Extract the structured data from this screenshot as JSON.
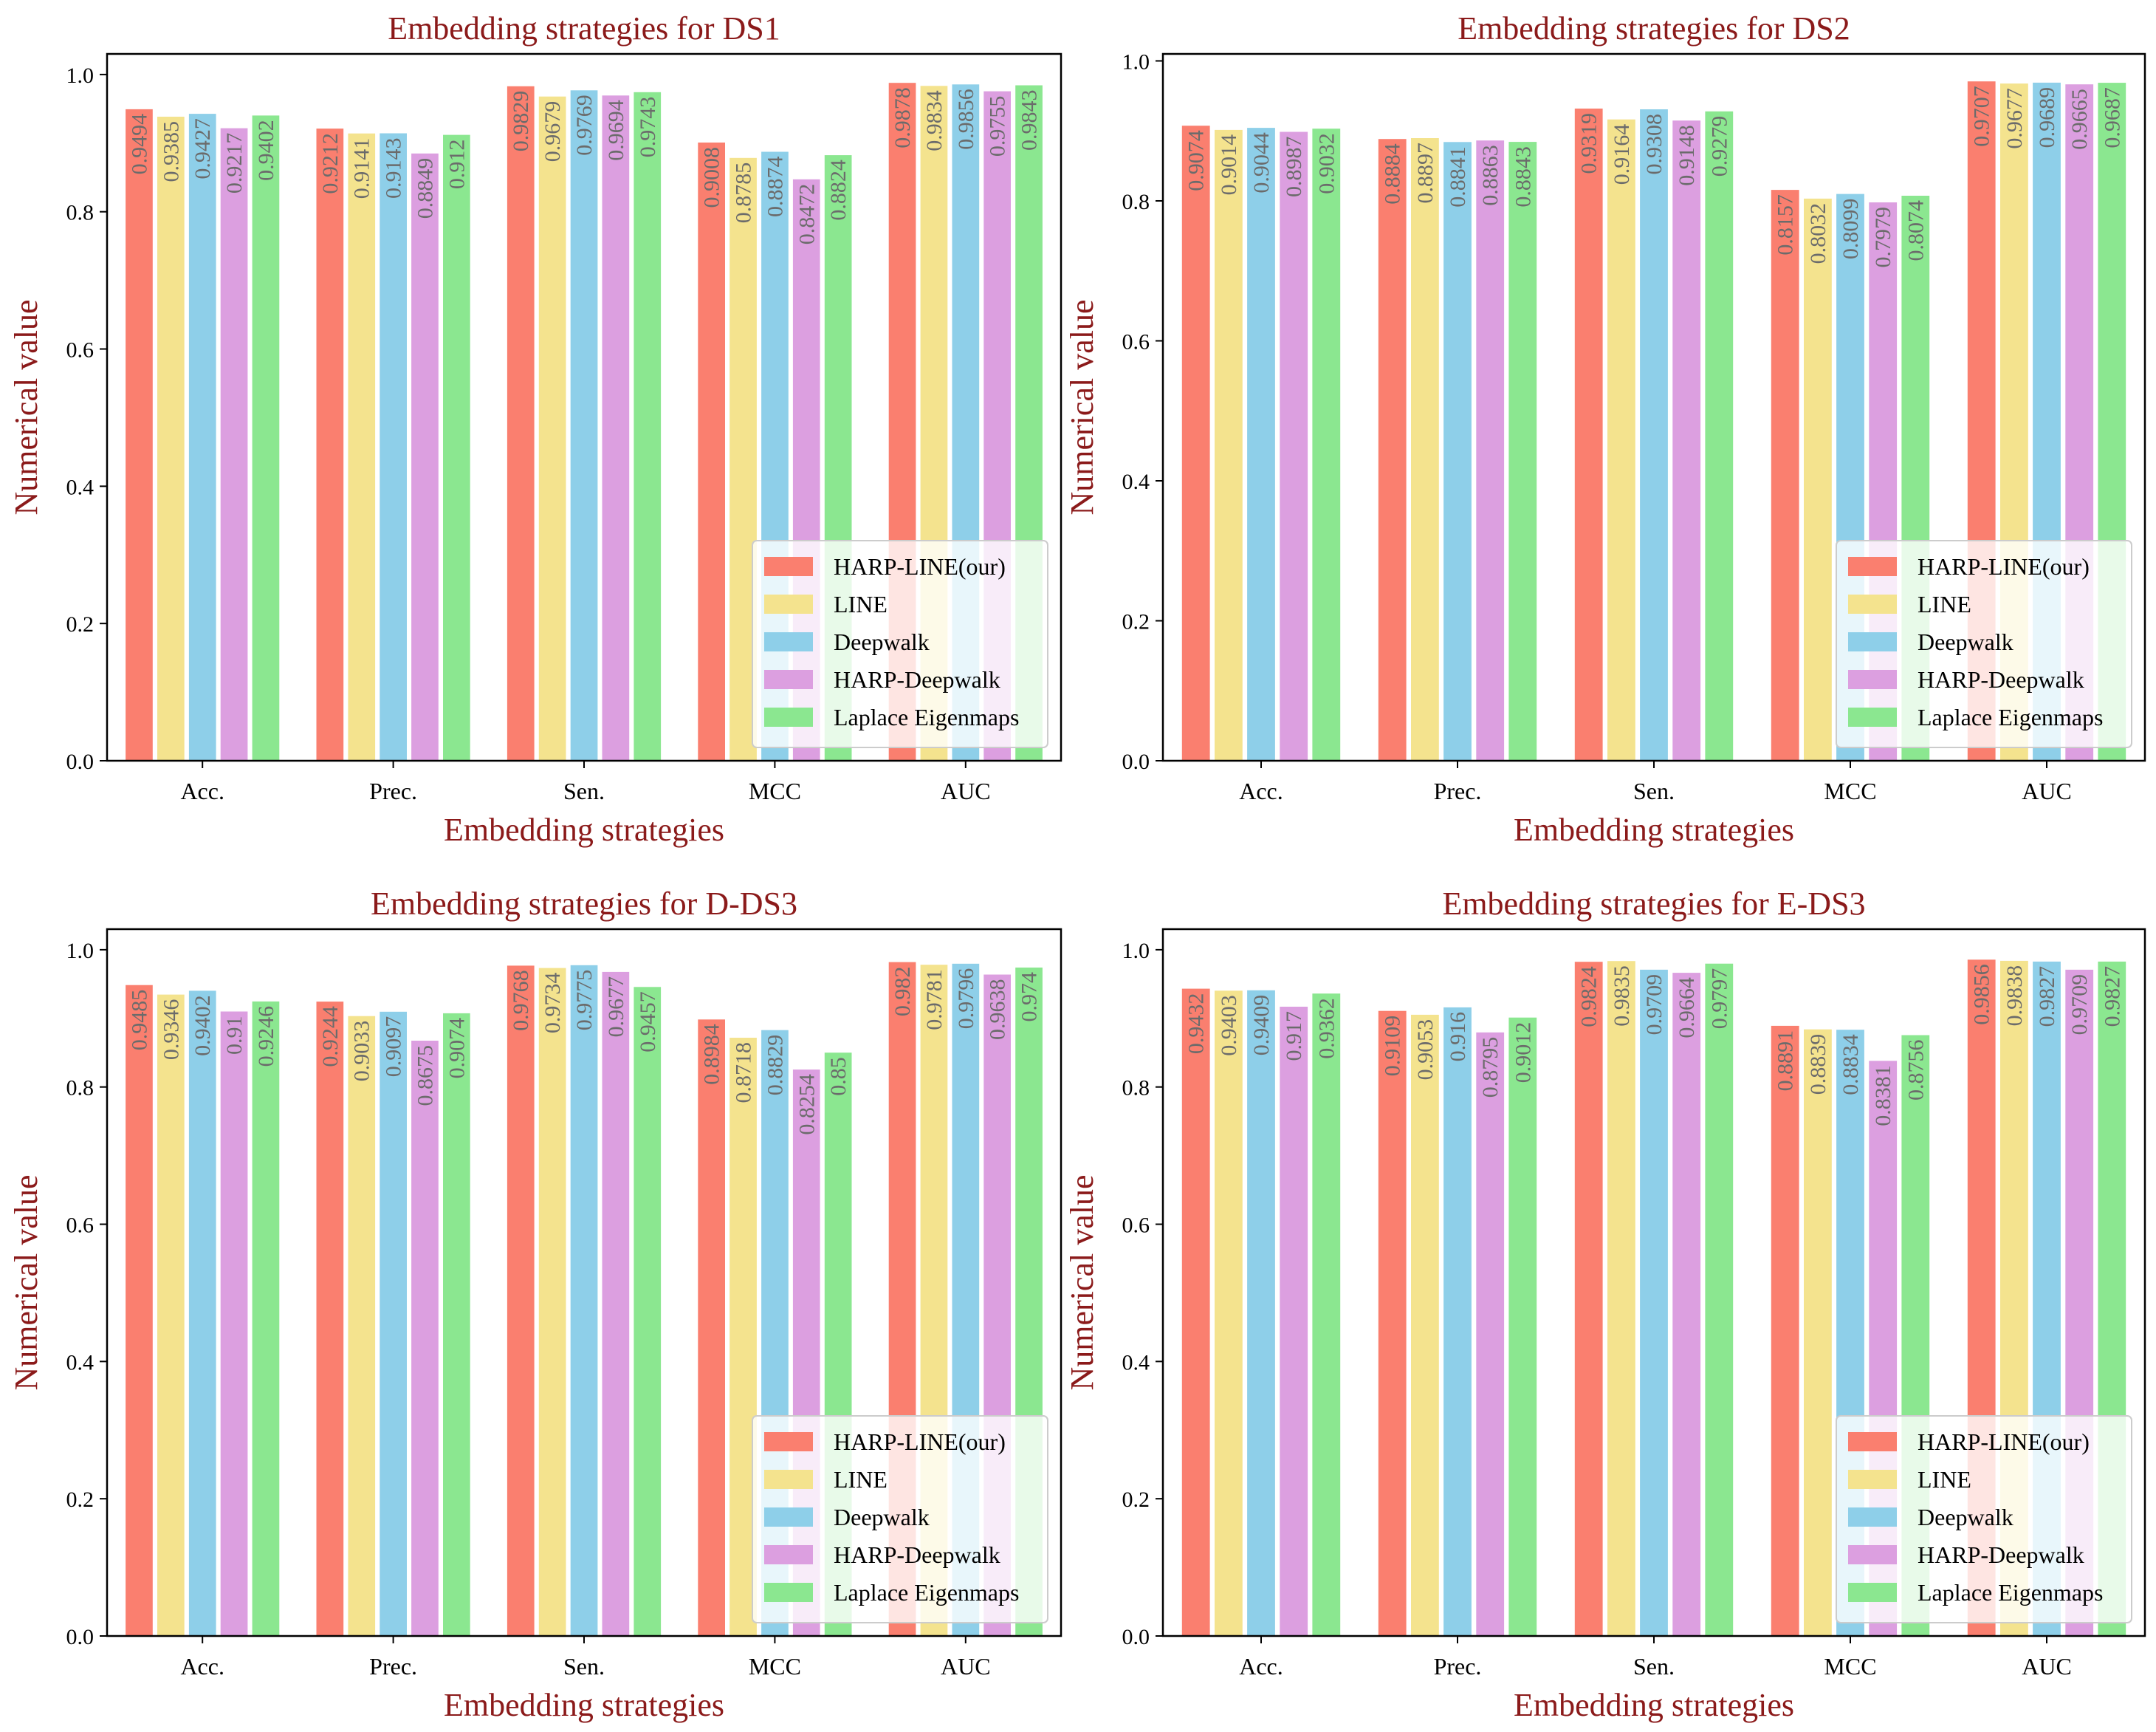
{
  "figure": {
    "legend_labels": [
      "HARP-LINE(our)",
      "LINE",
      "Deepwalk",
      "HARP-Deepwalk",
      "Laplace Eigenmaps"
    ]
  },
  "colors": {
    "series": [
      "#fa7f6f",
      "#f4e38e",
      "#8ecfe9",
      "#dc9fe0",
      "#8be790"
    ],
    "title": "#8b1a1a",
    "axis": "#000000",
    "data_label": "#6b6b6b"
  },
  "chart_data": [
    {
      "type": "bar",
      "title": "Embedding strategies for DS1",
      "xlabel": "Embedding strategies",
      "ylabel": "Numerical value",
      "categories": [
        "Acc.",
        "Prec.",
        "Sen.",
        "MCC",
        "AUC"
      ],
      "ylim": [
        0,
        1.03
      ],
      "yticks": [
        "0.0",
        "0.2",
        "0.4",
        "0.6",
        "0.8",
        "1.0"
      ],
      "legend_position": "lower-right",
      "series": [
        {
          "name": "HARP-LINE(our)",
          "values": [
            0.9494,
            0.9212,
            0.9829,
            0.9008,
            0.9878
          ],
          "labels": [
            "0.9494",
            "0.9212",
            "0.9829",
            "0.9008",
            "0.9878"
          ]
        },
        {
          "name": "LINE",
          "values": [
            0.9385,
            0.9141,
            0.9679,
            0.8785,
            0.9834
          ],
          "labels": [
            "0.9385",
            "0.9141",
            "0.9679",
            "0.8785",
            "0.9834"
          ]
        },
        {
          "name": "Deepwalk",
          "values": [
            0.9427,
            0.9143,
            0.9769,
            0.8874,
            0.9856
          ],
          "labels": [
            "0.9427",
            "0.9143",
            "0.9769",
            "0.8874",
            "0.9856"
          ]
        },
        {
          "name": "HARP-Deepwalk",
          "values": [
            0.9217,
            0.8849,
            0.9694,
            0.8472,
            0.9755
          ],
          "labels": [
            "0.9217",
            "0.8849",
            "0.9694",
            "0.8472",
            "0.9755"
          ]
        },
        {
          "name": "Laplace Eigenmaps",
          "values": [
            0.9402,
            0.912,
            0.9743,
            0.8824,
            0.9843
          ],
          "labels": [
            "0.9402",
            "0.912",
            "0.9743",
            "0.8824",
            "0.9843"
          ]
        }
      ]
    },
    {
      "type": "bar",
      "title": "Embedding strategies for DS2",
      "xlabel": "Embedding strategies",
      "ylabel": "Numerical value",
      "categories": [
        "Acc.",
        "Prec.",
        "Sen.",
        "MCC",
        "AUC"
      ],
      "ylim": [
        0,
        1.01
      ],
      "yticks": [
        "0.0",
        "0.2",
        "0.4",
        "0.6",
        "0.8",
        "1.0"
      ],
      "legend_position": "lower-right",
      "series": [
        {
          "name": "HARP-LINE(our)",
          "values": [
            0.9074,
            0.8884,
            0.9319,
            0.8157,
            0.9707
          ],
          "labels": [
            "0.9074",
            "0.8884",
            "0.9319",
            "0.8157",
            "0.9707"
          ]
        },
        {
          "name": "LINE",
          "values": [
            0.9014,
            0.8897,
            0.9164,
            0.8032,
            0.9677
          ],
          "labels": [
            "0.9014",
            "0.8897",
            "0.9164",
            "0.8032",
            "0.9677"
          ]
        },
        {
          "name": "Deepwalk",
          "values": [
            0.9044,
            0.8841,
            0.9308,
            0.8099,
            0.9689
          ],
          "labels": [
            "0.9044",
            "0.8841",
            "0.9308",
            "0.8099",
            "0.9689"
          ]
        },
        {
          "name": "HARP-Deepwalk",
          "values": [
            0.8987,
            0.8863,
            0.9148,
            0.7979,
            0.9665
          ],
          "labels": [
            "0.8987",
            "0.8863",
            "0.9148",
            "0.7979",
            "0.9665"
          ]
        },
        {
          "name": "Laplace Eigenmaps",
          "values": [
            0.9032,
            0.8843,
            0.9279,
            0.8074,
            0.9687
          ],
          "labels": [
            "0.9032",
            "0.8843",
            "0.9279",
            "0.8074",
            "0.9687"
          ]
        }
      ]
    },
    {
      "type": "bar",
      "title": "Embedding strategies for D-DS3",
      "xlabel": "Embedding strategies",
      "ylabel": "Numerical value",
      "categories": [
        "Acc.",
        "Prec.",
        "Sen.",
        "MCC",
        "AUC"
      ],
      "ylim": [
        0,
        1.03
      ],
      "yticks": [
        "0.0",
        "0.2",
        "0.4",
        "0.6",
        "0.8",
        "1.0"
      ],
      "legend_position": "lower-right",
      "series": [
        {
          "name": "HARP-LINE(our)",
          "values": [
            0.9485,
            0.9244,
            0.9768,
            0.8984,
            0.982
          ],
          "labels": [
            "0.9485",
            "0.9244",
            "0.9768",
            "0.8984",
            "0.982"
          ]
        },
        {
          "name": "LINE",
          "values": [
            0.9346,
            0.9033,
            0.9734,
            0.8718,
            0.9781
          ],
          "labels": [
            "0.9346",
            "0.9033",
            "0.9734",
            "0.8718",
            "0.9781"
          ]
        },
        {
          "name": "Deepwalk",
          "values": [
            0.9402,
            0.9097,
            0.9775,
            0.8829,
            0.9796
          ],
          "labels": [
            "0.9402",
            "0.9097",
            "0.9775",
            "0.8829",
            "0.9796"
          ]
        },
        {
          "name": "HARP-Deepwalk",
          "values": [
            0.91,
            0.8675,
            0.9677,
            0.8254,
            0.9638
          ],
          "labels": [
            "0.91",
            "0.8675",
            "0.9677",
            "0.8254",
            "0.9638"
          ]
        },
        {
          "name": "Laplace Eigenmaps",
          "values": [
            0.9246,
            0.9074,
            0.9457,
            0.85,
            0.974
          ],
          "labels": [
            "0.9246",
            "0.9074",
            "0.9457",
            "0.85",
            "0.974"
          ]
        }
      ]
    },
    {
      "type": "bar",
      "title": "Embedding strategies for E-DS3",
      "xlabel": "Embedding strategies",
      "ylabel": "Numerical value",
      "categories": [
        "Acc.",
        "Prec.",
        "Sen.",
        "MCC",
        "AUC"
      ],
      "ylim": [
        0,
        1.03
      ],
      "yticks": [
        "0.0",
        "0.2",
        "0.4",
        "0.6",
        "0.8",
        "1.0"
      ],
      "legend_position": "lower-right",
      "series": [
        {
          "name": "HARP-LINE(our)",
          "values": [
            0.9432,
            0.9109,
            0.9824,
            0.8891,
            0.9856
          ],
          "labels": [
            "0.9432",
            "0.9109",
            "0.9824",
            "0.8891",
            "0.9856"
          ]
        },
        {
          "name": "LINE",
          "values": [
            0.9403,
            0.9053,
            0.9835,
            0.8839,
            0.9838
          ],
          "labels": [
            "0.9403",
            "0.9053",
            "0.9835",
            "0.8839",
            "0.9838"
          ]
        },
        {
          "name": "Deepwalk",
          "values": [
            0.9409,
            0.916,
            0.9709,
            0.8834,
            0.9827
          ],
          "labels": [
            "0.9409",
            "0.916",
            "0.9709",
            "0.8834",
            "0.9827"
          ]
        },
        {
          "name": "HARP-Deepwalk",
          "values": [
            0.917,
            0.8795,
            0.9664,
            0.8381,
            0.9709
          ],
          "labels": [
            "0.917",
            "0.8795",
            "0.9664",
            "0.8381",
            "0.9709"
          ]
        },
        {
          "name": "Laplace Eigenmaps",
          "values": [
            0.9362,
            0.9012,
            0.9797,
            0.8756,
            0.9827
          ],
          "labels": [
            "0.9362",
            "0.9012",
            "0.9797",
            "0.8756",
            "0.9827"
          ]
        }
      ]
    }
  ]
}
